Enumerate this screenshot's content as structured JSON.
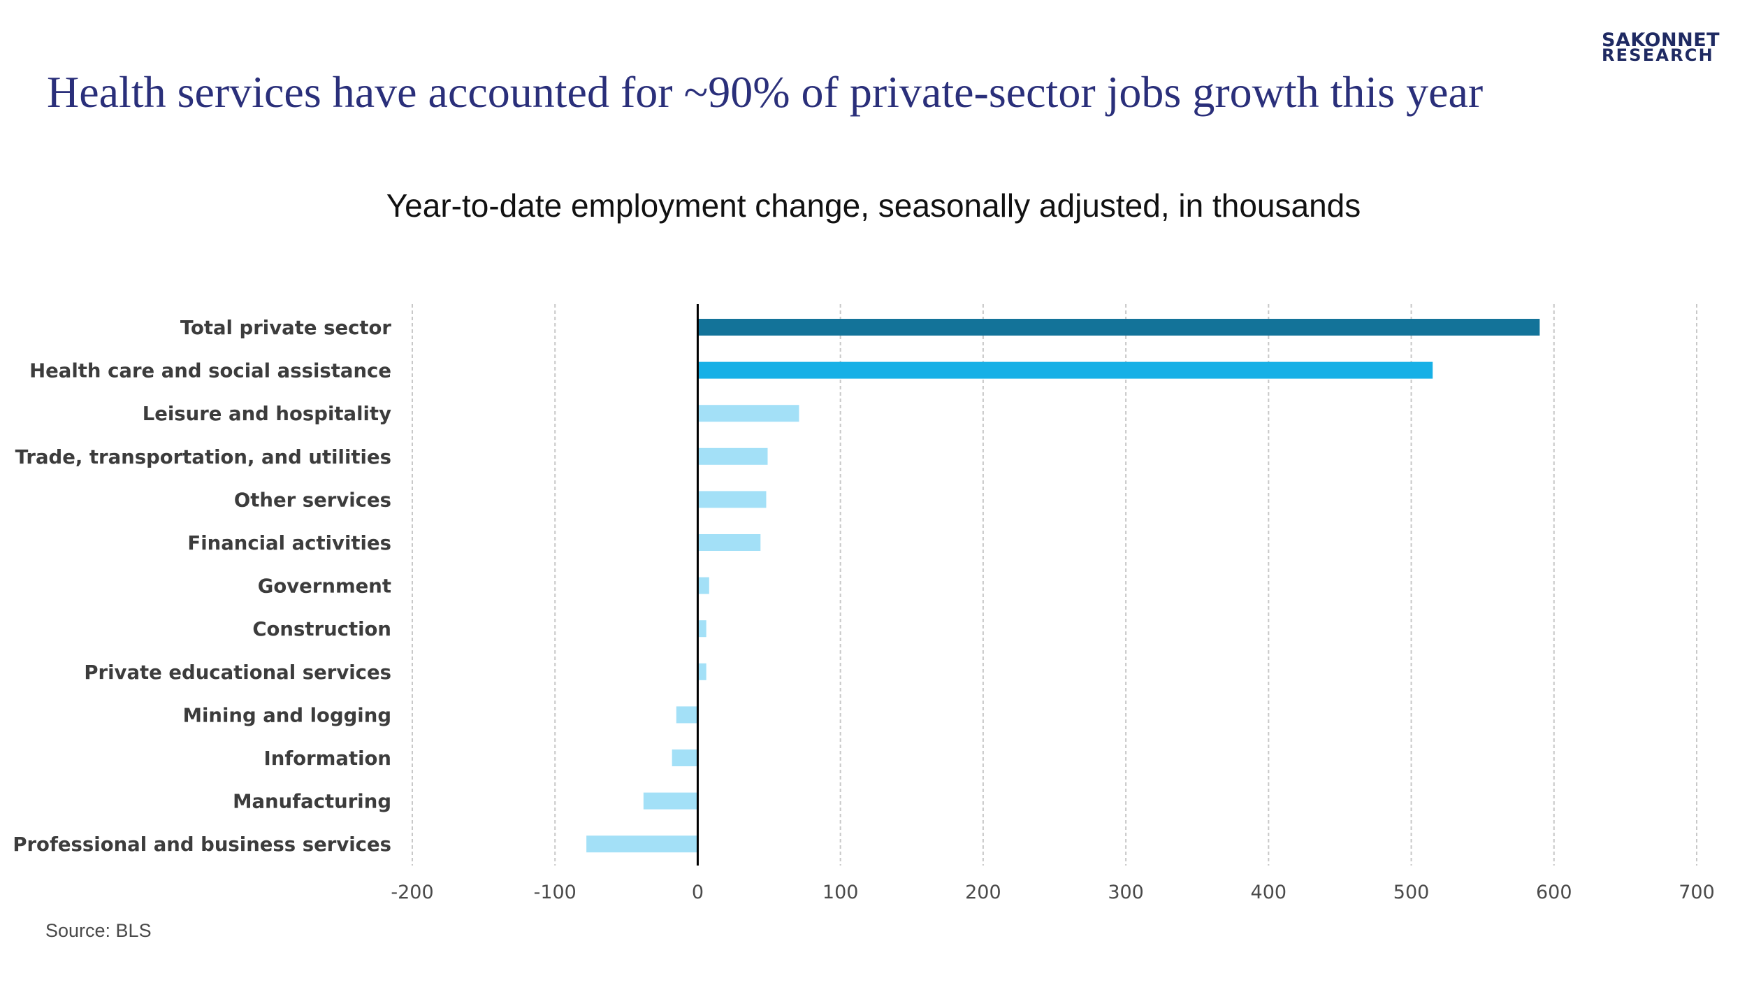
{
  "logo": {
    "line1": "SAKONNET",
    "line2": "RESEARCH"
  },
  "headline": "Health services have accounted for ~90% of private-sector jobs growth this year",
  "source": "Source: BLS",
  "colors": {
    "headline": "#2a2f7a",
    "logo": "#1f2a62",
    "total_bar": "#137399",
    "highlight_bar": "#17b0e6",
    "other_bar": "#a3e0f7",
    "gridline": "#c8c8c8",
    "zero_axis": "#000000"
  },
  "chart_data": {
    "type": "bar",
    "orientation": "horizontal",
    "title": "Year-to-date employment change, seasonally adjusted, in thousands",
    "xlabel": "",
    "ylabel": "",
    "xlim": [
      -200,
      700
    ],
    "xticks": [
      -200,
      -100,
      0,
      100,
      200,
      300,
      400,
      500,
      600,
      700
    ],
    "grid": true,
    "legend": "none",
    "categories": [
      "Total private sector",
      "Health care and social assistance",
      "Leisure and hospitality",
      "Trade, transportation, and utilities",
      "Other services",
      "Financial activities",
      "Government",
      "Construction",
      "Private educational services",
      "Mining and logging",
      "Information",
      "Manufacturing",
      "Professional and business services"
    ],
    "values": [
      590,
      515,
      71,
      49,
      48,
      44,
      8,
      6,
      6,
      -15,
      -18,
      -38,
      -78
    ],
    "bar_color_keys": [
      "total_bar",
      "highlight_bar",
      "other_bar",
      "other_bar",
      "other_bar",
      "other_bar",
      "other_bar",
      "other_bar",
      "other_bar",
      "other_bar",
      "other_bar",
      "other_bar",
      "other_bar"
    ]
  }
}
